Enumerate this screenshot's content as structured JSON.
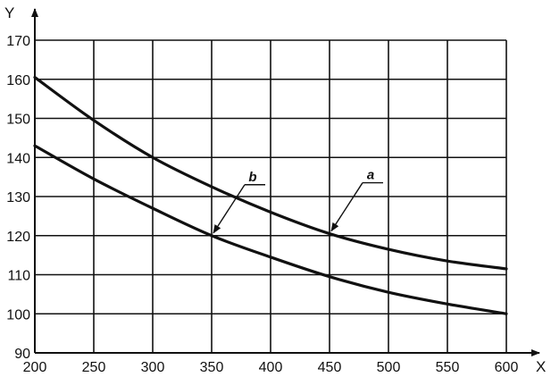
{
  "chart_data": {
    "type": "line",
    "title": "",
    "xlabel": "X",
    "ylabel": "Y",
    "xlim": [
      200,
      600
    ],
    "ylim": [
      90,
      170
    ],
    "x_ticks": [
      200,
      250,
      300,
      350,
      400,
      450,
      500,
      550,
      600
    ],
    "y_ticks": [
      90,
      100,
      110,
      120,
      130,
      140,
      150,
      160,
      170
    ],
    "grid": true,
    "legend": "none",
    "series": [
      {
        "name": "a",
        "x": [
          200,
          250,
          300,
          350,
          400,
          450,
          500,
          550,
          600
        ],
        "y": [
          160.5,
          149.5,
          140,
          132.5,
          126,
          120.5,
          116.5,
          113.5,
          111.5
        ]
      },
      {
        "name": "b",
        "x": [
          200,
          250,
          300,
          350,
          400,
          450,
          500,
          550,
          600
        ],
        "y": [
          143,
          134.5,
          127,
          120,
          114.5,
          109.5,
          105.5,
          102.5,
          100
        ]
      }
    ],
    "annotations": [
      {
        "label": "a",
        "target_x": 450,
        "target_y": 120.5
      },
      {
        "label": "b",
        "target_x": 350,
        "target_y": 120
      }
    ]
  }
}
